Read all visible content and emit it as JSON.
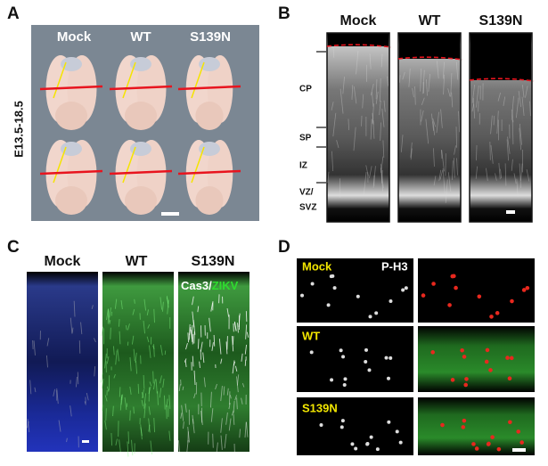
{
  "panel_a": {
    "label": "A",
    "headers": [
      "Mock",
      "WT",
      "S139N"
    ],
    "side_label": "E13.5-18.5"
  },
  "panel_b": {
    "label": "B",
    "headers": [
      "Mock",
      "WT",
      "S139N"
    ],
    "layers": [
      "CP",
      "SP",
      "IZ",
      "VZ/",
      "SVZ"
    ]
  },
  "panel_c": {
    "label": "C",
    "headers": [
      "Mock",
      "WT",
      "S139N"
    ],
    "stain": [
      "Cas3/",
      "ZIKV"
    ]
  },
  "panel_d": {
    "label": "D",
    "rows": [
      "Mock",
      "WT",
      "S139N"
    ],
    "stain": "P-H3"
  }
}
